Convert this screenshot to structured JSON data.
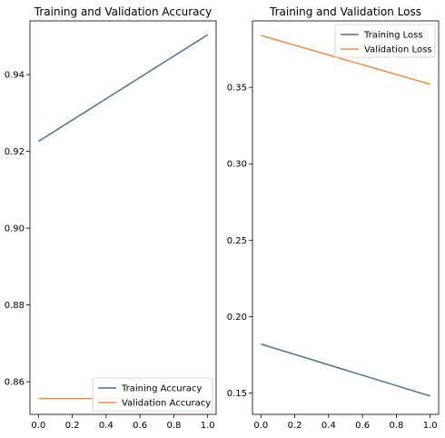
{
  "chart_data": [
    {
      "type": "line",
      "title": "Training and Validation Accuracy",
      "xlabel": "",
      "ylabel": "",
      "xlim": [
        -0.05,
        1.05
      ],
      "ylim": [
        0.8515,
        0.954
      ],
      "xticks": [
        0.0,
        0.2,
        0.4,
        0.6,
        0.8,
        1.0
      ],
      "xtick_labels": [
        "0.0",
        "0.2",
        "0.4",
        "0.6",
        "0.8",
        "1.0"
      ],
      "yticks": [
        0.86,
        0.88,
        0.9,
        0.92,
        0.94
      ],
      "ytick_labels": [
        "0.86",
        "0.88",
        "0.90",
        "0.92",
        "0.94"
      ],
      "legend_position": "lower right",
      "series": [
        {
          "name": "Training Accuracy",
          "color": "#4a7194",
          "x": [
            0,
            1
          ],
          "y": [
            0.9226,
            0.9504
          ]
        },
        {
          "name": "Validation Accuracy",
          "color": "#e8914a",
          "x": [
            0,
            1
          ],
          "y": [
            0.8556,
            0.8556
          ]
        }
      ]
    },
    {
      "type": "line",
      "title": "Training and Validation Loss",
      "xlabel": "",
      "ylabel": "",
      "xlim": [
        -0.05,
        1.05
      ],
      "ylim": [
        0.136,
        0.3935
      ],
      "xticks": [
        0.0,
        0.2,
        0.4,
        0.6,
        0.8,
        1.0
      ],
      "xtick_labels": [
        "0.0",
        "0.2",
        "0.4",
        "0.6",
        "0.8",
        "1.0"
      ],
      "yticks": [
        0.15,
        0.2,
        0.25,
        0.3,
        0.35
      ],
      "ytick_labels": [
        "0.15",
        "0.20",
        "0.25",
        "0.30",
        "0.35"
      ],
      "legend_position": "upper right",
      "series": [
        {
          "name": "Training Loss",
          "color": "#4a7194",
          "x": [
            0,
            1
          ],
          "y": [
            0.182,
            0.148
          ]
        },
        {
          "name": "Validation Loss",
          "color": "#e8914a",
          "x": [
            0,
            1
          ],
          "y": [
            0.384,
            0.352
          ]
        }
      ]
    }
  ]
}
